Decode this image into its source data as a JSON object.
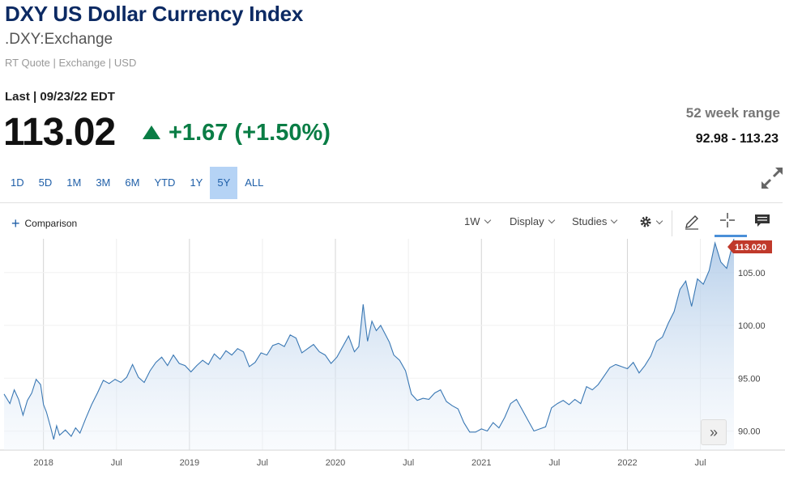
{
  "header": {
    "title": "DXY US Dollar Currency Index",
    "symbol": ".DXY:Exchange",
    "quote_info": "RT Quote | Exchange | USD",
    "last_label": "Last | 09/23/22 EDT",
    "price": "113.02",
    "change": "+1.67 (+1.50%)",
    "range_label": "52 week range",
    "range_value": "92.98 - 113.23"
  },
  "ranges": [
    "1D",
    "5D",
    "1M",
    "3M",
    "6M",
    "YTD",
    "1Y",
    "5Y",
    "ALL"
  ],
  "active_range": "5Y",
  "toolbar": {
    "comparison_label": "Comparison",
    "interval_label": "1W",
    "display_label": "Display",
    "studies_label": "Studies"
  },
  "colors": {
    "accent": "#1f5fa8",
    "up": "#0a7d45",
    "line": "#3a78b4",
    "last_badge": "#c0392b"
  },
  "icons": [
    "plus-icon",
    "gear-icon",
    "pencil-icon",
    "crosshair-icon",
    "comment-icon",
    "expand-icon",
    "double-chevron-right-icon",
    "up-triangle-icon"
  ],
  "chart_data": {
    "type": "area",
    "x_tick_labels": [
      "2018",
      "Jul",
      "2019",
      "Jul",
      "2020",
      "Jul",
      "2021",
      "Jul",
      "2022",
      "Jul"
    ],
    "y_ticks": [
      90,
      95,
      100,
      105
    ],
    "y_tick_labels": [
      "90.00",
      "95.00",
      "100.00",
      "105.00"
    ],
    "ylim": [
      88.2,
      108.2
    ],
    "last_value": 113.02,
    "last_label": "113.020",
    "grid": "vertical",
    "series": [
      {
        "values": [
          [
            2017.73,
            93.5
          ],
          [
            2017.77,
            92.6
          ],
          [
            2017.8,
            93.9
          ],
          [
            2017.83,
            93.0
          ],
          [
            2017.86,
            91.5
          ],
          [
            2017.89,
            92.9
          ],
          [
            2017.92,
            93.6
          ],
          [
            2017.95,
            94.9
          ],
          [
            2017.98,
            94.4
          ],
          [
            2018.0,
            92.5
          ],
          [
            2018.02,
            91.8
          ],
          [
            2018.05,
            90.3
          ],
          [
            2018.07,
            89.2
          ],
          [
            2018.09,
            90.5
          ],
          [
            2018.11,
            89.6
          ],
          [
            2018.15,
            90.1
          ],
          [
            2018.19,
            89.5
          ],
          [
            2018.22,
            90.3
          ],
          [
            2018.25,
            89.8
          ],
          [
            2018.29,
            91.2
          ],
          [
            2018.33,
            92.5
          ],
          [
            2018.37,
            93.6
          ],
          [
            2018.41,
            94.8
          ],
          [
            2018.45,
            94.5
          ],
          [
            2018.49,
            94.9
          ],
          [
            2018.53,
            94.6
          ],
          [
            2018.57,
            95.1
          ],
          [
            2018.61,
            96.3
          ],
          [
            2018.65,
            95.1
          ],
          [
            2018.69,
            94.6
          ],
          [
            2018.73,
            95.7
          ],
          [
            2018.77,
            96.5
          ],
          [
            2018.81,
            97.0
          ],
          [
            2018.85,
            96.2
          ],
          [
            2018.89,
            97.2
          ],
          [
            2018.93,
            96.4
          ],
          [
            2018.97,
            96.2
          ],
          [
            2019.01,
            95.6
          ],
          [
            2019.05,
            96.2
          ],
          [
            2019.09,
            96.7
          ],
          [
            2019.13,
            96.3
          ],
          [
            2019.17,
            97.3
          ],
          [
            2019.21,
            96.8
          ],
          [
            2019.25,
            97.6
          ],
          [
            2019.29,
            97.2
          ],
          [
            2019.33,
            97.8
          ],
          [
            2019.37,
            97.5
          ],
          [
            2019.41,
            96.1
          ],
          [
            2019.45,
            96.5
          ],
          [
            2019.49,
            97.4
          ],
          [
            2019.53,
            97.2
          ],
          [
            2019.57,
            98.1
          ],
          [
            2019.61,
            98.3
          ],
          [
            2019.65,
            98.0
          ],
          [
            2019.69,
            99.1
          ],
          [
            2019.73,
            98.8
          ],
          [
            2019.77,
            97.4
          ],
          [
            2019.81,
            97.8
          ],
          [
            2019.85,
            98.2
          ],
          [
            2019.89,
            97.5
          ],
          [
            2019.93,
            97.2
          ],
          [
            2019.97,
            96.4
          ],
          [
            2020.01,
            97.0
          ],
          [
            2020.05,
            98.0
          ],
          [
            2020.09,
            99.0
          ],
          [
            2020.13,
            97.5
          ],
          [
            2020.16,
            98.0
          ],
          [
            2020.19,
            102.0
          ],
          [
            2020.22,
            98.5
          ],
          [
            2020.25,
            100.4
          ],
          [
            2020.28,
            99.5
          ],
          [
            2020.31,
            100.0
          ],
          [
            2020.34,
            99.2
          ],
          [
            2020.37,
            98.4
          ],
          [
            2020.4,
            97.2
          ],
          [
            2020.44,
            96.7
          ],
          [
            2020.48,
            95.7
          ],
          [
            2020.52,
            93.5
          ],
          [
            2020.56,
            92.9
          ],
          [
            2020.6,
            93.1
          ],
          [
            2020.64,
            93.0
          ],
          [
            2020.68,
            93.6
          ],
          [
            2020.72,
            93.9
          ],
          [
            2020.76,
            92.8
          ],
          [
            2020.8,
            92.4
          ],
          [
            2020.84,
            92.1
          ],
          [
            2020.88,
            90.8
          ],
          [
            2020.92,
            89.9
          ],
          [
            2020.96,
            89.9
          ],
          [
            2021.0,
            90.2
          ],
          [
            2021.04,
            90.0
          ],
          [
            2021.08,
            90.8
          ],
          [
            2021.12,
            90.3
          ],
          [
            2021.16,
            91.3
          ],
          [
            2021.2,
            92.6
          ],
          [
            2021.24,
            93.0
          ],
          [
            2021.28,
            92.0
          ],
          [
            2021.32,
            91.0
          ],
          [
            2021.36,
            90.0
          ],
          [
            2021.4,
            90.2
          ],
          [
            2021.44,
            90.4
          ],
          [
            2021.48,
            92.2
          ],
          [
            2021.52,
            92.6
          ],
          [
            2021.56,
            92.9
          ],
          [
            2021.6,
            92.5
          ],
          [
            2021.64,
            93.0
          ],
          [
            2021.68,
            92.6
          ],
          [
            2021.72,
            94.2
          ],
          [
            2021.76,
            93.9
          ],
          [
            2021.8,
            94.4
          ],
          [
            2021.84,
            95.2
          ],
          [
            2021.88,
            96.0
          ],
          [
            2021.92,
            96.3
          ],
          [
            2021.96,
            96.1
          ],
          [
            2022.0,
            95.9
          ],
          [
            2022.04,
            96.5
          ],
          [
            2022.08,
            95.5
          ],
          [
            2022.12,
            96.2
          ],
          [
            2022.16,
            97.1
          ],
          [
            2022.2,
            98.5
          ],
          [
            2022.24,
            98.9
          ],
          [
            2022.28,
            100.2
          ],
          [
            2022.32,
            101.3
          ],
          [
            2022.36,
            103.4
          ],
          [
            2022.4,
            104.2
          ],
          [
            2022.44,
            101.8
          ],
          [
            2022.48,
            104.4
          ],
          [
            2022.52,
            103.9
          ],
          [
            2022.56,
            105.2
          ],
          [
            2022.6,
            107.8
          ],
          [
            2022.64,
            106.0
          ],
          [
            2022.68,
            105.4
          ],
          [
            2022.73,
            113.02
          ]
        ]
      }
    ]
  }
}
